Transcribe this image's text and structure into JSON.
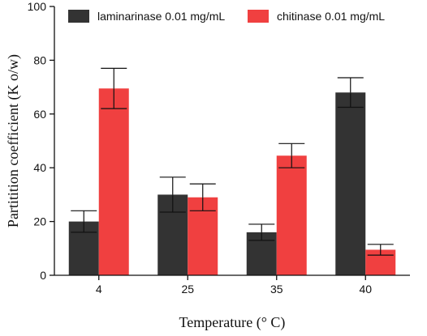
{
  "chart_data": {
    "type": "bar",
    "categories": [
      "4",
      "25",
      "35",
      "40"
    ],
    "series": [
      {
        "name": "laminarinase 0.01 mg/mL",
        "color": "#333333",
        "values": [
          20,
          30,
          16,
          68
        ],
        "errors": [
          4,
          6.5,
          3,
          5.5
        ]
      },
      {
        "name": "chitinase 0.01 mg/mL",
        "color": "#f04040",
        "values": [
          69.5,
          29,
          44.5,
          9.5
        ],
        "errors": [
          7.5,
          5,
          4.5,
          2
        ]
      }
    ],
    "xlabel": "Temperature (° C)",
    "ylabel": "Partitition coefficient  (K o/w)",
    "ylim": [
      0,
      100
    ],
    "yticks": [
      0,
      20,
      40,
      60,
      80,
      100
    ],
    "grid": false,
    "legend": "top"
  }
}
